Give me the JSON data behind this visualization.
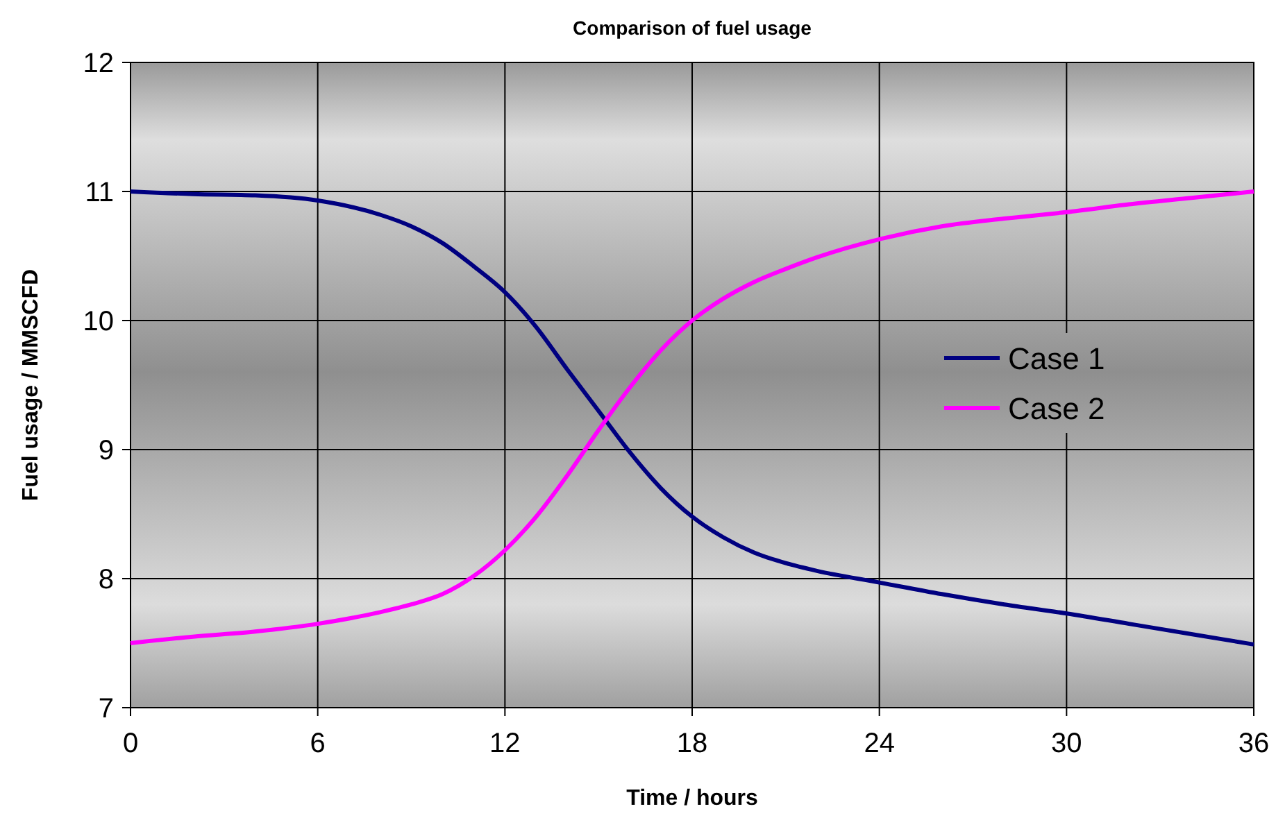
{
  "chart_data": {
    "type": "line",
    "title": "Comparison of fuel usage",
    "xlabel": "Time / hours",
    "ylabel": "Fuel usage / MMSCFD",
    "x": [
      0,
      2,
      4,
      6,
      8,
      9,
      10,
      11,
      12,
      13,
      14,
      15,
      16,
      17,
      18,
      19,
      20,
      21,
      22,
      24,
      26,
      28,
      30,
      32,
      34,
      36
    ],
    "series": [
      {
        "name": "Case 1",
        "color": "#000080",
        "values": [
          11,
          10.98,
          10.97,
          10.93,
          10.82,
          10.73,
          10.6,
          10.42,
          10.22,
          9.95,
          9.62,
          9.3,
          8.98,
          8.7,
          8.48,
          8.32,
          8.2,
          8.12,
          8.06,
          7.97,
          7.88,
          7.8,
          7.73,
          7.65,
          7.57,
          7.49
        ]
      },
      {
        "name": "Case 2",
        "color": "#ff00ff",
        "values": [
          7.5,
          7.55,
          7.59,
          7.65,
          7.74,
          7.8,
          7.88,
          8.02,
          8.22,
          8.48,
          8.8,
          9.15,
          9.48,
          9.77,
          10,
          10.17,
          10.3,
          10.4,
          10.49,
          10.63,
          10.73,
          10.79,
          10.84,
          10.9,
          10.95,
          11
        ]
      }
    ],
    "xlim": [
      0,
      36
    ],
    "xticks": [
      0,
      6,
      12,
      18,
      24,
      30,
      36
    ],
    "ylim": [
      7,
      12
    ],
    "yticks": [
      7,
      8,
      9,
      10,
      11,
      12
    ],
    "grid": true,
    "legend": "right",
    "marker": "none",
    "line_style": "solid"
  }
}
